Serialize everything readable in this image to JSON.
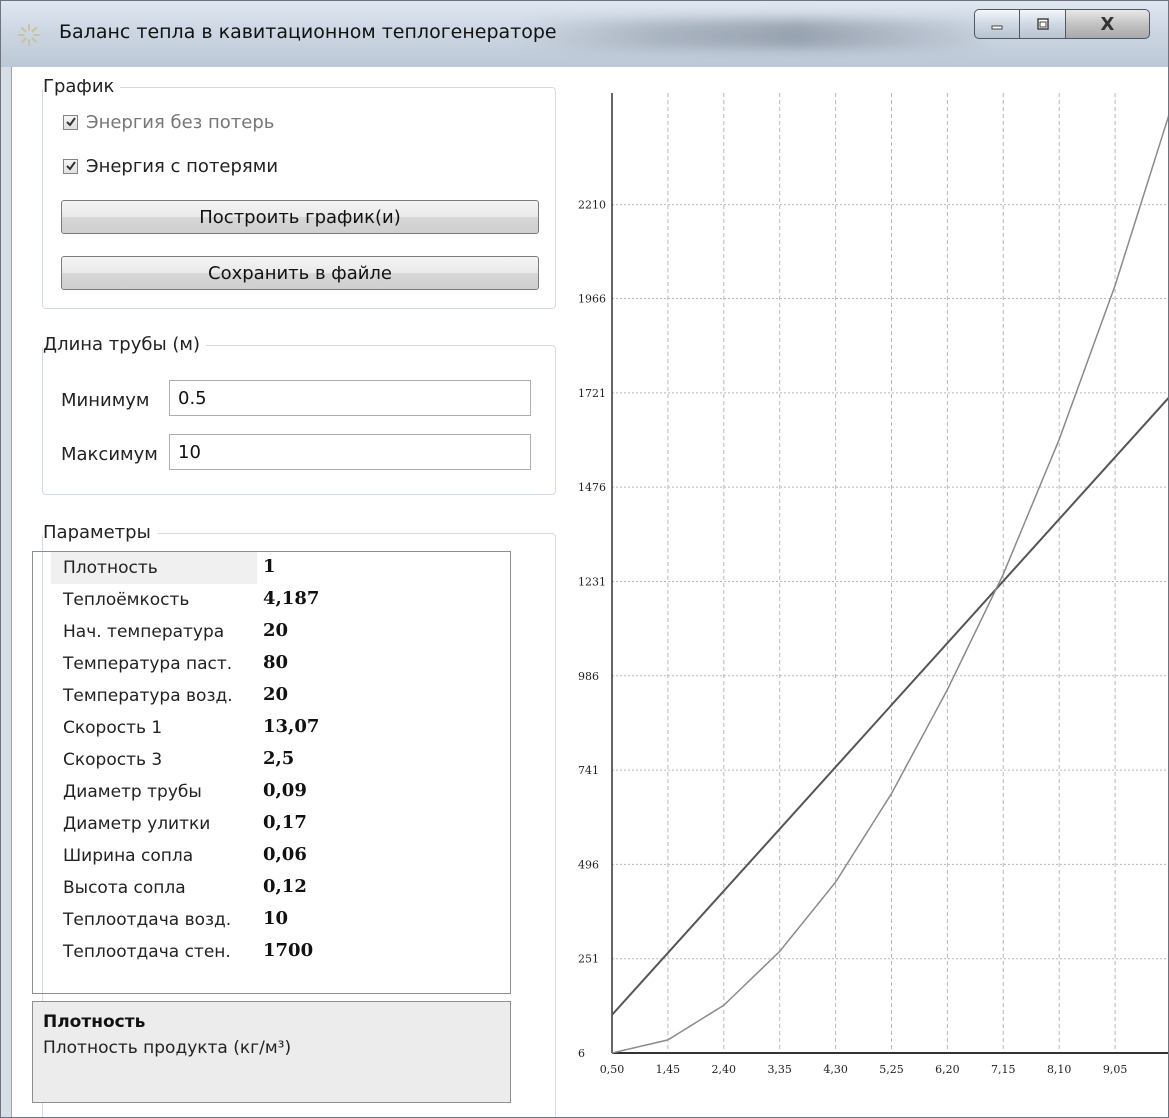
{
  "window": {
    "title": "Баланс тепла в кавитационном теплогенераторе",
    "close_label": "X"
  },
  "graph_group": {
    "title": "График",
    "checkbox_no_loss": {
      "label": "Энергия без потерь",
      "checked": true
    },
    "checkbox_with_loss": {
      "label": "Энергия с потерями",
      "checked": true
    },
    "build_button": "Построить график(и)",
    "save_button": "Сохранить в файле"
  },
  "pipe_group": {
    "title": "Длина трубы (м)",
    "min_label": "Минимум",
    "min_value": "0.5",
    "max_label": "Максимум",
    "max_value": "10"
  },
  "params_group": {
    "title": "Параметры",
    "rows": [
      {
        "name": "Плотность",
        "value": "1"
      },
      {
        "name": "Теплоёмкость",
        "value": "4,187"
      },
      {
        "name": "Нач. температура",
        "value": "20"
      },
      {
        "name": "Температура паст.",
        "value": "80"
      },
      {
        "name": "Температура возд.",
        "value": "20"
      },
      {
        "name": "Скорость 1",
        "value": "13,07"
      },
      {
        "name": "Скорость 3",
        "value": "2,5"
      },
      {
        "name": "Диаметр трубы",
        "value": "0,09"
      },
      {
        "name": "Диаметр улитки",
        "value": "0,17"
      },
      {
        "name": "Ширина сопла",
        "value": "0,06"
      },
      {
        "name": "Высота сопла",
        "value": "0,12"
      },
      {
        "name": "Теплоотдача возд.",
        "value": "10"
      },
      {
        "name": "Теплоотдача стен.",
        "value": "1700"
      }
    ],
    "description_title": "Плотность",
    "description_text": "Плотность продукта (кг/м³)"
  },
  "chart_data": {
    "type": "line",
    "title": "",
    "xlabel": "",
    "ylabel": "",
    "xlim": [
      0.5,
      10
    ],
    "ylim": [
      6,
      2500
    ],
    "x_ticks": [
      0.5,
      1.45,
      2.4,
      3.35,
      4.3,
      5.25,
      6.2,
      7.15,
      8.1,
      9.05
    ],
    "x_tick_labels": [
      "0,50",
      "1,45",
      "2,40",
      "3,35",
      "4,30",
      "5,25",
      "6,20",
      "7,15",
      "8,10",
      "9,05"
    ],
    "y_ticks": [
      6,
      251,
      496,
      741,
      986,
      1231,
      1476,
      1721,
      1966,
      2210
    ],
    "y_tick_labels": [
      "6",
      "251",
      "496",
      "741",
      "986",
      "1231",
      "1476",
      "1721",
      "1966",
      "2210"
    ],
    "grid": true,
    "series": [
      {
        "x": [
          0.5,
          10
        ],
        "y": [
          105,
          1715
        ]
      },
      {
        "x": [
          0.5,
          1.45,
          2.4,
          3.35,
          4.3,
          5.25,
          6.2,
          7.15,
          8.1,
          9.05,
          10
        ],
        "y": [
          6,
          40,
          130,
          270,
          450,
          680,
          950,
          1250,
          1600,
          2000,
          2460
        ]
      }
    ],
    "colors": {
      "line1": "#555555",
      "line2": "#8a8a8a",
      "grid": "#b8b8b8",
      "axis": "#333333"
    }
  }
}
